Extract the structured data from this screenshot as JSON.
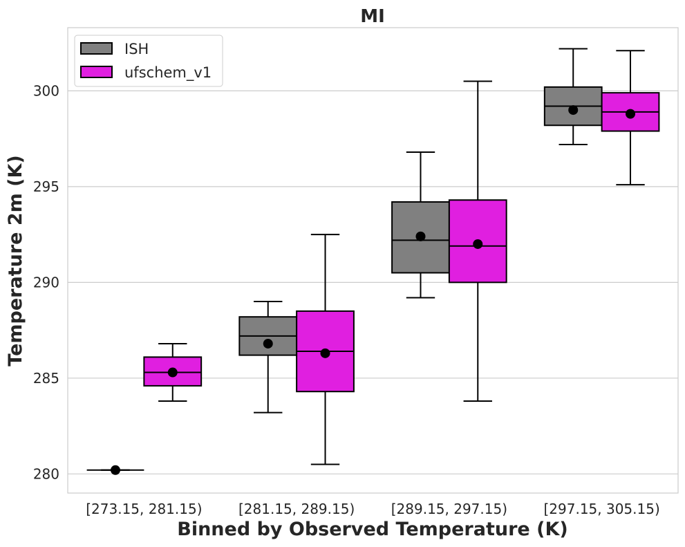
{
  "chart_data": {
    "type": "box",
    "title": "MI",
    "xlabel": "Binned by Observed Temperature (K)",
    "ylabel": "Temperature 2m (K)",
    "ylim": [
      279.0,
      303.3
    ],
    "yticks": [
      280,
      285,
      290,
      295,
      300
    ],
    "grid": "horizontal",
    "legend_position": "top-left",
    "categories": [
      "[273.15, 281.15)",
      "[281.15, 289.15)",
      "[289.15, 297.15)",
      "[297.15, 305.15)"
    ],
    "series": [
      {
        "name": "ISH",
        "color": "#808080",
        "boxes": [
          {
            "whisker_low": 280.2,
            "q1": 280.2,
            "median": 280.2,
            "q3": 280.2,
            "whisker_high": 280.2,
            "mean": 280.2
          },
          {
            "whisker_low": 283.2,
            "q1": 286.2,
            "median": 287.2,
            "q3": 288.2,
            "whisker_high": 289.0,
            "mean": 286.8
          },
          {
            "whisker_low": 289.2,
            "q1": 290.5,
            "median": 292.2,
            "q3": 294.2,
            "whisker_high": 296.8,
            "mean": 292.4
          },
          {
            "whisker_low": 297.2,
            "q1": 298.2,
            "median": 299.2,
            "q3": 300.2,
            "whisker_high": 302.2,
            "mean": 299.0
          }
        ]
      },
      {
        "name": "ufschem_v1",
        "color": "#e01fe0",
        "boxes": [
          {
            "whisker_low": 283.8,
            "q1": 284.6,
            "median": 285.3,
            "q3": 286.1,
            "whisker_high": 286.8,
            "mean": 285.3
          },
          {
            "whisker_low": 280.5,
            "q1": 284.3,
            "median": 286.4,
            "q3": 288.5,
            "whisker_high": 292.5,
            "mean": 286.3
          },
          {
            "whisker_low": 283.8,
            "q1": 290.0,
            "median": 291.9,
            "q3": 294.3,
            "whisker_high": 300.5,
            "mean": 292.0
          },
          {
            "whisker_low": 295.1,
            "q1": 297.9,
            "median": 298.9,
            "q3": 299.9,
            "whisker_high": 302.1,
            "mean": 298.8
          }
        ]
      }
    ]
  }
}
